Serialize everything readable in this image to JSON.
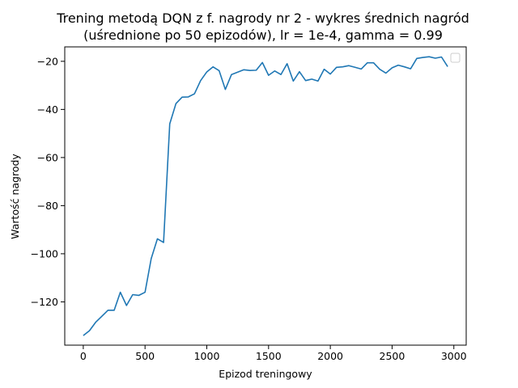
{
  "chart_data": {
    "type": "line",
    "title": "Trening metodą DQN z f. nagrody nr 2 - wykres średnich nagród",
    "subtitle": "(uśrednione po 50 epizodów), lr = 1e-4, gamma = 0.99",
    "xlabel": "Epizod treningowy",
    "ylabel": "Wartość nagrody",
    "xlim": [
      -150,
      3100
    ],
    "ylim": [
      -138,
      -14
    ],
    "xticks": [
      0,
      500,
      1000,
      1500,
      2000,
      2500,
      3000
    ],
    "yticks": [
      -120,
      -100,
      -80,
      -60,
      -40,
      -20
    ],
    "grid": false,
    "legend": "upper right (empty)",
    "series": [
      {
        "color": "#1f77b4",
        "x": [
          0,
          50,
          100,
          150,
          200,
          250,
          300,
          350,
          400,
          450,
          500,
          550,
          600,
          650,
          700,
          750,
          800,
          850,
          900,
          950,
          1000,
          1050,
          1100,
          1150,
          1200,
          1250,
          1300,
          1350,
          1400,
          1450,
          1500,
          1550,
          1600,
          1650,
          1700,
          1750,
          1800,
          1850,
          1900,
          1950,
          2000,
          2050,
          2100,
          2150,
          2200,
          2250,
          2300,
          2350,
          2400,
          2450,
          2500,
          2550,
          2600,
          2650,
          2700,
          2750,
          2800,
          2850,
          2900,
          2950
        ],
        "values": [
          -134,
          -132,
          -128.5,
          -126,
          -123.5,
          -123.5,
          -116,
          -121.5,
          -117,
          -117.3,
          -116,
          -102,
          -93.8,
          -95.3,
          -46,
          -37.6,
          -34.9,
          -34.8,
          -33.5,
          -28,
          -24.4,
          -22.3,
          -23.9,
          -31.7,
          -25.5,
          -24.5,
          -23.5,
          -23.8,
          -23.7,
          -20.5,
          -25.8,
          -24,
          -25.5,
          -21,
          -28.2,
          -24.3,
          -28,
          -27.4,
          -28.2,
          -23.3,
          -25.3,
          -22.5,
          -22.3,
          -21.8,
          -22.5,
          -23.2,
          -20.6,
          -20.6,
          -23.3,
          -24.9,
          -22.7,
          -21.6,
          -22.3,
          -23.1,
          -18.8,
          -18.4,
          -18.1,
          -18.7,
          -18.2,
          -22.2
        ]
      }
    ]
  }
}
